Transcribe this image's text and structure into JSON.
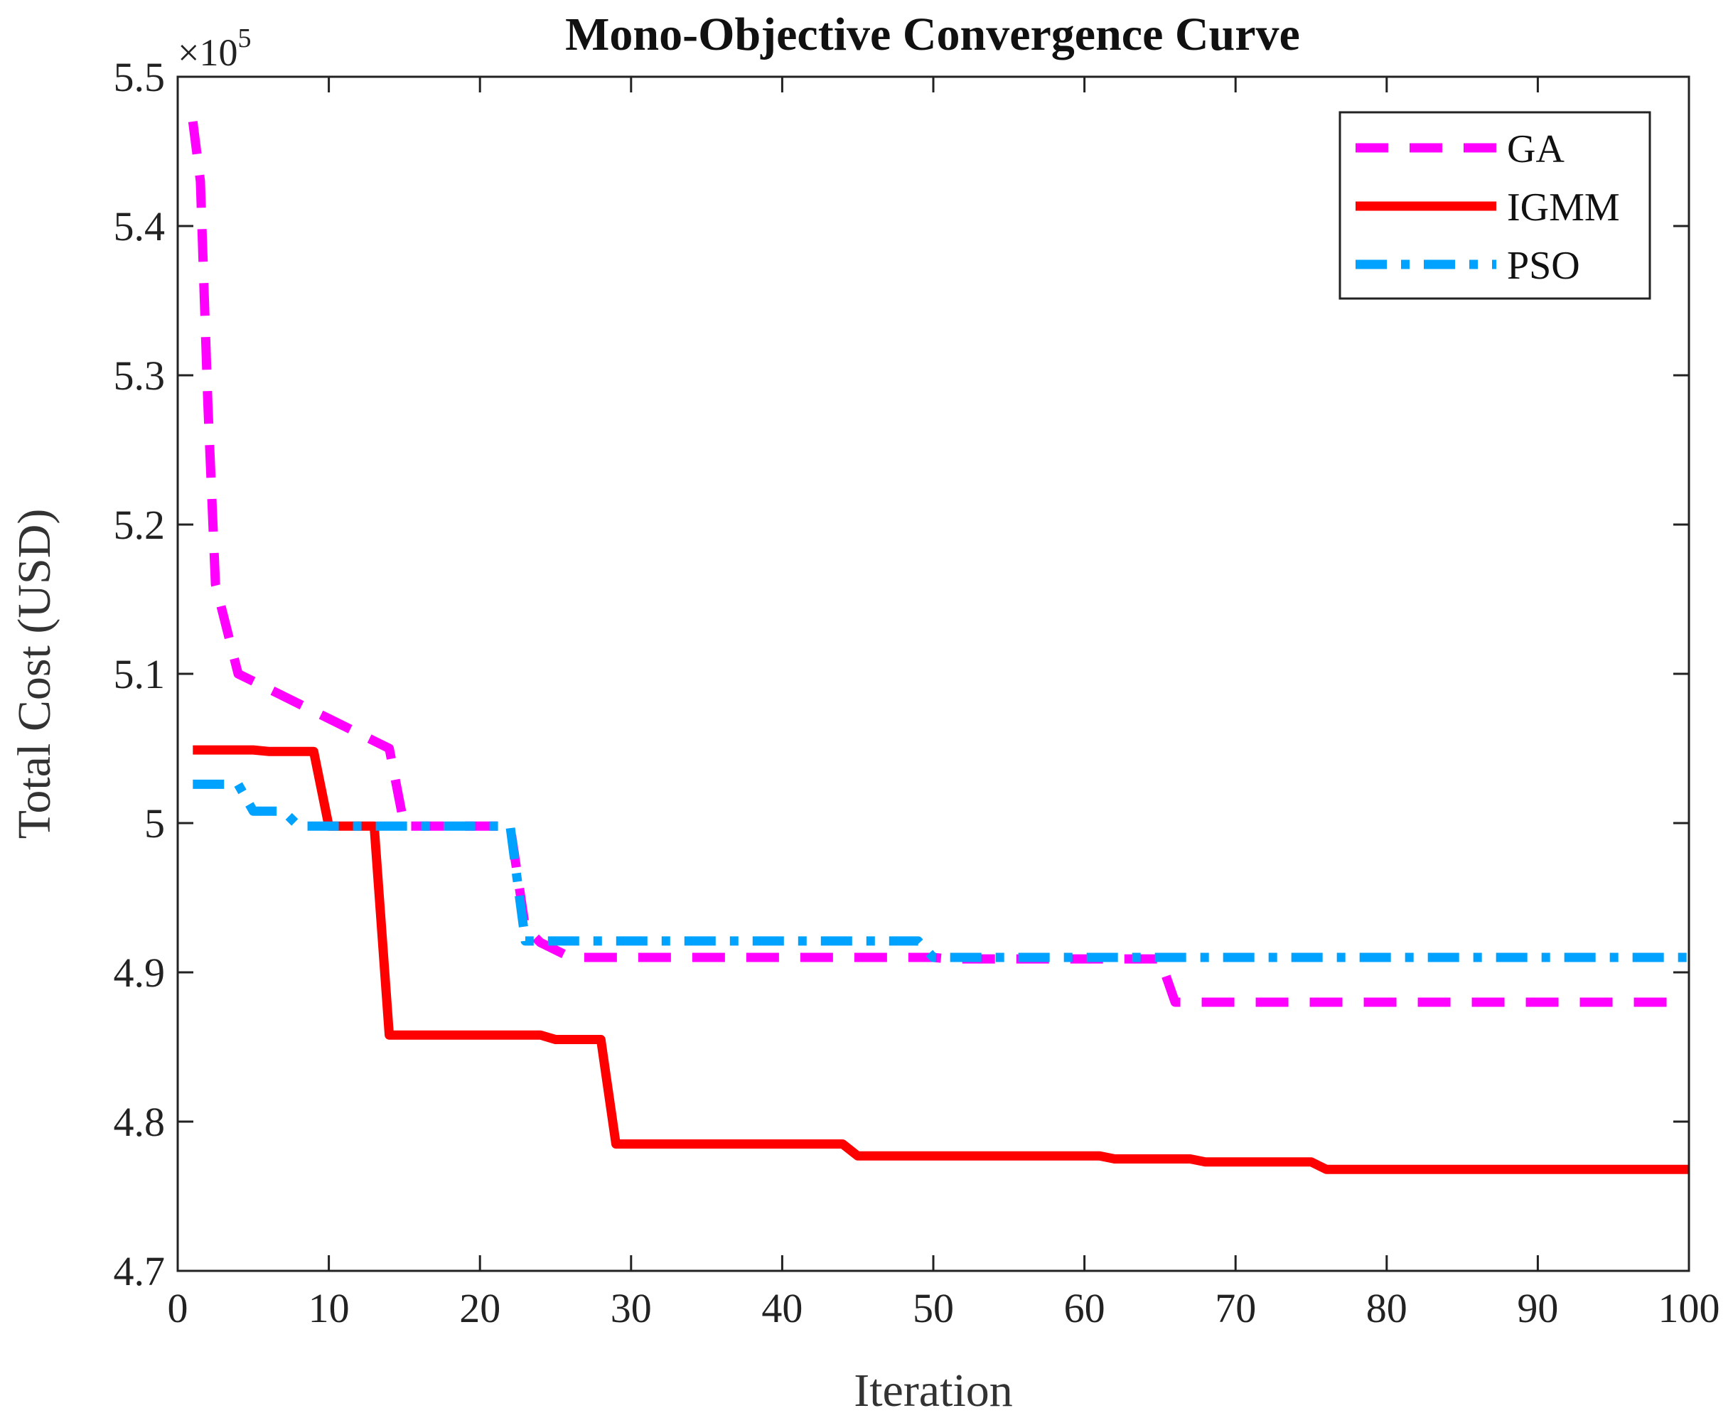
{
  "chart_data": {
    "type": "line",
    "title": "Mono-Objective Convergence Curve",
    "xlabel": "Iteration",
    "ylabel": "Total Cost (USD)",
    "xlim": [
      0,
      100
    ],
    "ylim": [
      4.7,
      5.5
    ],
    "y_multiplier": "×10",
    "y_multiplier_exponent": "5",
    "grid": false,
    "legend_position": "top-right",
    "x_ticks": [
      0,
      10,
      20,
      30,
      40,
      50,
      60,
      70,
      80,
      90,
      100
    ],
    "y_ticks": [
      4.7,
      4.8,
      4.9,
      5.0,
      5.1,
      5.2,
      5.3,
      5.4,
      5.5
    ],
    "x_tick_labels": [
      "0",
      "10",
      "20",
      "30",
      "40",
      "50",
      "60",
      "70",
      "80",
      "90",
      "100"
    ],
    "y_tick_labels": [
      "4.7",
      "4.8",
      "4.9",
      "5",
      "5.1",
      "5.2",
      "5.3",
      "5.4",
      "5.5"
    ],
    "series": [
      {
        "name": "GA",
        "color": "#ff00ff",
        "style": "dashed",
        "points": [
          [
            1,
            5.47
          ],
          [
            1.5,
            5.43
          ],
          [
            2,
            5.28
          ],
          [
            2.5,
            5.16
          ],
          [
            3,
            5.14
          ],
          [
            4,
            5.1
          ],
          [
            6,
            5.09
          ],
          [
            8,
            5.08
          ],
          [
            10,
            5.07
          ],
          [
            12,
            5.06
          ],
          [
            14,
            5.05
          ],
          [
            15,
            4.998
          ],
          [
            22,
            4.998
          ],
          [
            23,
            4.93
          ],
          [
            24,
            4.92
          ],
          [
            26,
            4.91
          ],
          [
            50,
            4.91
          ],
          [
            51,
            4.909
          ],
          [
            65,
            4.909
          ],
          [
            66,
            4.88
          ],
          [
            100,
            4.88
          ]
        ]
      },
      {
        "name": "IGMM",
        "color": "#ff0000",
        "style": "solid",
        "points": [
          [
            1,
            5.049
          ],
          [
            5,
            5.049
          ],
          [
            6,
            5.048
          ],
          [
            9,
            5.048
          ],
          [
            10,
            4.998
          ],
          [
            13,
            4.998
          ],
          [
            14,
            4.858
          ],
          [
            24,
            4.858
          ],
          [
            25,
            4.855
          ],
          [
            28,
            4.855
          ],
          [
            29,
            4.785
          ],
          [
            44,
            4.785
          ],
          [
            45,
            4.777
          ],
          [
            61,
            4.777
          ],
          [
            62,
            4.775
          ],
          [
            67,
            4.775
          ],
          [
            68,
            4.773
          ],
          [
            75,
            4.773
          ],
          [
            76,
            4.768
          ],
          [
            100,
            4.768
          ]
        ]
      },
      {
        "name": "PSO",
        "color": "#00a2ff",
        "style": "dashdot",
        "points": [
          [
            1,
            5.026
          ],
          [
            4,
            5.026
          ],
          [
            5,
            5.008
          ],
          [
            7,
            5.008
          ],
          [
            8,
            4.998
          ],
          [
            22,
            4.998
          ],
          [
            23,
            4.921
          ],
          [
            49,
            4.921
          ],
          [
            50,
            4.91
          ],
          [
            100,
            4.91
          ]
        ]
      }
    ]
  }
}
